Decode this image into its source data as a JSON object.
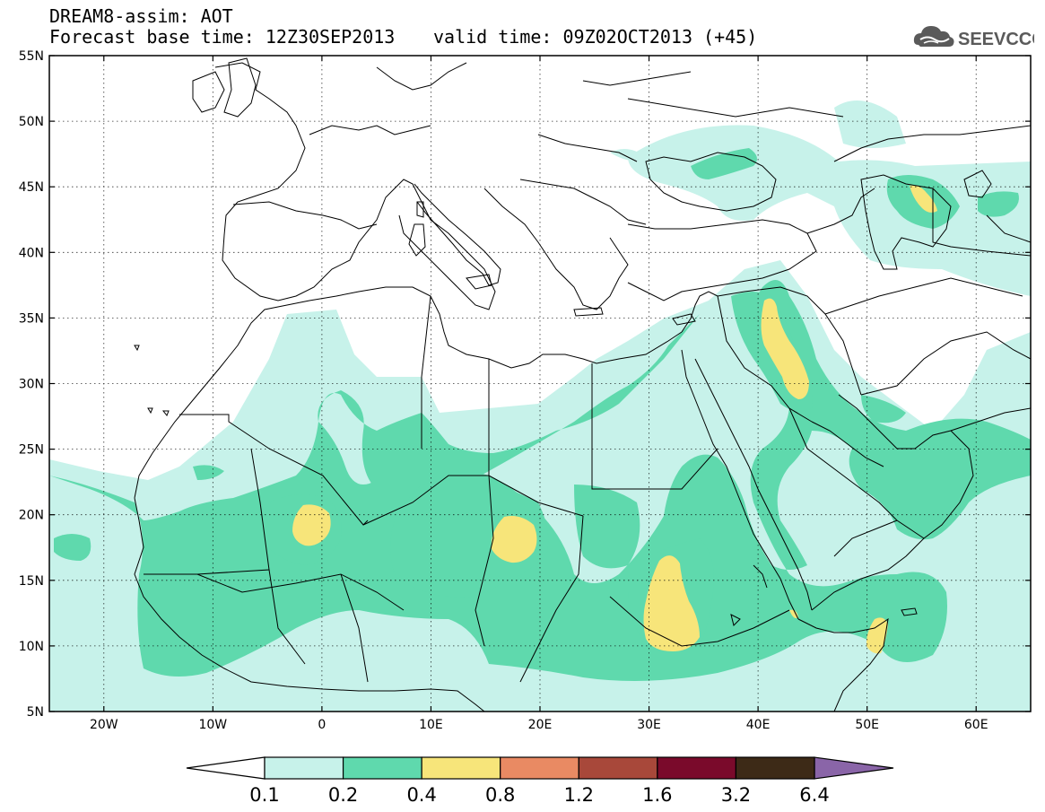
{
  "header": {
    "model_line": "DREAM8-assim: AOT",
    "base_time": "Forecast base time: 12Z30SEP2013",
    "valid_time": "valid time: 09Z02OCT2013 (+45)"
  },
  "logo": {
    "text": "SEEVCCC",
    "icon": "cloud-logo-icon",
    "color": "#5a5a5a"
  },
  "map": {
    "lon_range": [
      -25,
      65
    ],
    "lat_range": [
      5,
      55
    ],
    "x_ticks": [
      {
        "value": -20,
        "label": "20W"
      },
      {
        "value": -10,
        "label": "10W"
      },
      {
        "value": 0,
        "label": "0"
      },
      {
        "value": 10,
        "label": "10E"
      },
      {
        "value": 20,
        "label": "20E"
      },
      {
        "value": 30,
        "label": "30E"
      },
      {
        "value": 40,
        "label": "40E"
      },
      {
        "value": 50,
        "label": "50E"
      },
      {
        "value": 60,
        "label": "60E"
      }
    ],
    "y_ticks": [
      {
        "value": 5,
        "label": "5N"
      },
      {
        "value": 10,
        "label": "10N"
      },
      {
        "value": 15,
        "label": "15N"
      },
      {
        "value": 20,
        "label": "20N"
      },
      {
        "value": 25,
        "label": "25N"
      },
      {
        "value": 30,
        "label": "30N"
      },
      {
        "value": 35,
        "label": "35N"
      },
      {
        "value": 40,
        "label": "40N"
      },
      {
        "value": 45,
        "label": "45N"
      },
      {
        "value": 50,
        "label": "50N"
      },
      {
        "value": 55,
        "label": "55N"
      }
    ],
    "gridlines": "dotted"
  },
  "colorbar": {
    "labels": [
      "0.1",
      "0.2",
      "0.4",
      "0.8",
      "1.2",
      "1.6",
      "3.2",
      "6.4"
    ],
    "under_color": "#ffffff",
    "colors": [
      "#c7f2ea",
      "#5fd9ad",
      "#f7e57a",
      "#e98a63",
      "#a8483a",
      "#7a0a2b",
      "#3d2a17"
    ],
    "over_color": "#8a65a8"
  },
  "colors": {
    "level_01": "#c7f2ea",
    "level_02": "#5fd9ad",
    "level_04": "#f7e57a"
  }
}
